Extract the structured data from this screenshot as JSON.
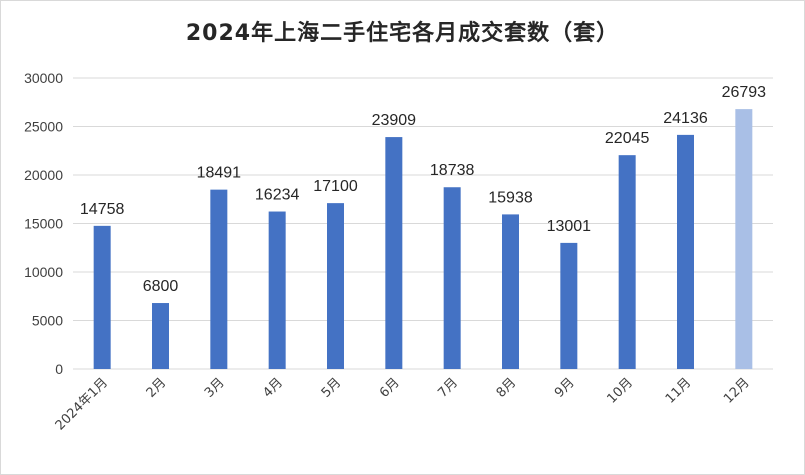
{
  "chart_data": {
    "type": "bar",
    "title": "2024年上海二手住宅各月成交套数（套）",
    "xlabel": "",
    "ylabel": "",
    "categories": [
      "2024年1月",
      "2月",
      "3月",
      "4月",
      "5月",
      "6月",
      "7月",
      "8月",
      "9月",
      "10月",
      "11月",
      "12月"
    ],
    "values": [
      14758,
      6800,
      18491,
      16234,
      17100,
      23909,
      18738,
      15938,
      13001,
      22045,
      24136,
      26793
    ],
    "ylim": [
      0,
      30000
    ],
    "yticks": [
      0,
      5000,
      10000,
      15000,
      20000,
      25000,
      30000
    ],
    "grid": true,
    "legend": "none",
    "colors": {
      "bar": "#4472c4",
      "highlight": "#a9bfe6",
      "grid": "#d9d9d9"
    },
    "highlight_index": 11,
    "data_labels": true
  }
}
